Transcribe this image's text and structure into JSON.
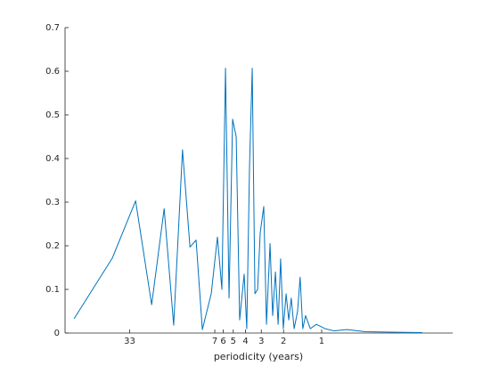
{
  "chart_data": {
    "type": "line",
    "xlabel": "periodicity (years)",
    "xscale": "log",
    "xlim": [
      107,
      0.092
    ],
    "xticks": [
      33,
      7,
      6,
      5,
      4,
      3,
      2,
      1
    ],
    "ylim": [
      0,
      0.7
    ],
    "yticks": [
      0,
      0.1,
      0.2,
      0.3,
      0.4,
      0.5,
      0.6,
      0.7
    ],
    "x": [
      90.7,
      45.2,
      29.6,
      22.1,
      17.6,
      14.8,
      12.6,
      11.0,
      9.84,
      8.78,
      7.47,
      6.67,
      6.15,
      5.76,
      5.4,
      5.06,
      4.74,
      4.45,
      4.1,
      3.91,
      3.72,
      3.54,
      3.37,
      3.21,
      3.06,
      2.87,
      2.73,
      2.56,
      2.44,
      2.32,
      2.21,
      2.11,
      2.01,
      1.91,
      1.82,
      1.74,
      1.65,
      1.55,
      1.48,
      1.41,
      1.34,
      1.23,
      1.1,
      0.94,
      0.8,
      0.63,
      0.45,
      0.28,
      0.16
    ],
    "series": [
      {
        "color": "#0072bd",
        "values": [
          0.033,
          0.172,
          0.303,
          0.065,
          0.285,
          0.018,
          0.42,
          0.197,
          0.213,
          0.008,
          0.09,
          0.22,
          0.1,
          0.607,
          0.08,
          0.49,
          0.45,
          0.03,
          0.135,
          0.01,
          0.38,
          0.607,
          0.09,
          0.1,
          0.23,
          0.29,
          0.02,
          0.205,
          0.04,
          0.14,
          0.02,
          0.17,
          0.01,
          0.09,
          0.03,
          0.08,
          0.01,
          0.05,
          0.128,
          0.01,
          0.04,
          0.01,
          0.02,
          0.01,
          0.005,
          0.008,
          0.003,
          0.002,
          0.001
        ]
      }
    ]
  }
}
